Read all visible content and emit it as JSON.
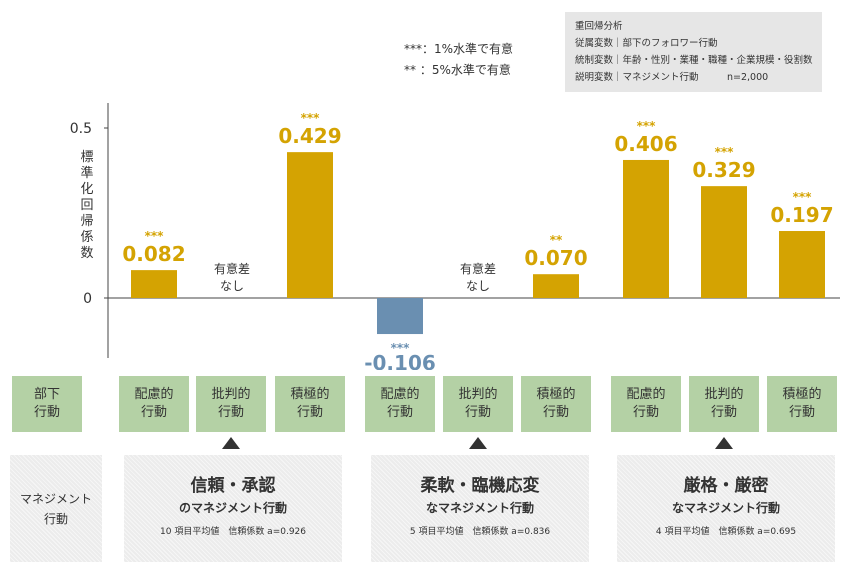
{
  "legend": {
    "line1": "***：1%水準で有意",
    "line2": "**  ：5%水準で有意"
  },
  "info_box": {
    "title": "重回帰分析",
    "dependent": "従属変数｜部下のフォロワー行動",
    "control": "統制変数｜年齢・性別・業種・職種・企業規模・役割数",
    "explanatory": "説明変数｜マネジメント行動　　　n=2,000"
  },
  "chart_data": {
    "type": "bar",
    "ylabel": "標準化回帰係数",
    "ylim": [
      -0.2,
      0.55
    ],
    "yticks": [
      {
        "value": 0,
        "label": "0"
      },
      {
        "value": 0.5,
        "label": "0.5"
      }
    ],
    "colors": {
      "positive": "#d4a302",
      "negative": "#6a8fb1",
      "text": "#333333"
    },
    "bars": [
      {
        "group": "信頼・承認",
        "category": "配慮的行動",
        "value": 0.082,
        "label": "0.082",
        "sig": "***"
      },
      {
        "group": "信頼・承認",
        "category": "批判的行動",
        "value": null,
        "label": "有意差\nなし",
        "sig": ""
      },
      {
        "group": "信頼・承認",
        "category": "積極的行動",
        "value": 0.429,
        "label": "0.429",
        "sig": "***"
      },
      {
        "group": "柔軟・臨機応変",
        "category": "配慮的行動",
        "value": -0.106,
        "label": "-0.106",
        "sig": "***"
      },
      {
        "group": "柔軟・臨機応変",
        "category": "批判的行動",
        "value": null,
        "label": "有意差\nなし",
        "sig": ""
      },
      {
        "group": "柔軟・臨機応変",
        "category": "積極的行動",
        "value": 0.07,
        "label": "0.070",
        "sig": "**"
      },
      {
        "group": "厳格・厳密",
        "category": "配慮的行動",
        "value": 0.406,
        "label": "0.406",
        "sig": "***"
      },
      {
        "group": "厳格・厳密",
        "category": "批判的行動",
        "value": 0.329,
        "label": "0.329",
        "sig": "***"
      },
      {
        "group": "厳格・厳密",
        "category": "積極的行動",
        "value": 0.197,
        "label": "0.197",
        "sig": "***"
      }
    ]
  },
  "behavior_boxes": {
    "header": "部下\n行動",
    "items": [
      "配慮的\n行動",
      "批判的\n行動",
      "積極的\n行動",
      "配慮的\n行動",
      "批判的\n行動",
      "積極的\n行動",
      "配慮的\n行動",
      "批判的\n行動",
      "積極的\n行動"
    ]
  },
  "management": {
    "header": "マネジメント\n行動",
    "groups": [
      {
        "title": "信頼・承認",
        "subtitle": "のマネジメント行動",
        "note": "10 項目平均値　信頼係数 a=0.926"
      },
      {
        "title": "柔軟・臨機応変",
        "subtitle": "なマネジメント行動",
        "note": "5 項目平均値　信頼係数 a=0.836"
      },
      {
        "title": "厳格・厳密",
        "subtitle": "なマネジメント行動",
        "note": "4 項目平均値　信頼係数 a=0.695"
      }
    ]
  }
}
